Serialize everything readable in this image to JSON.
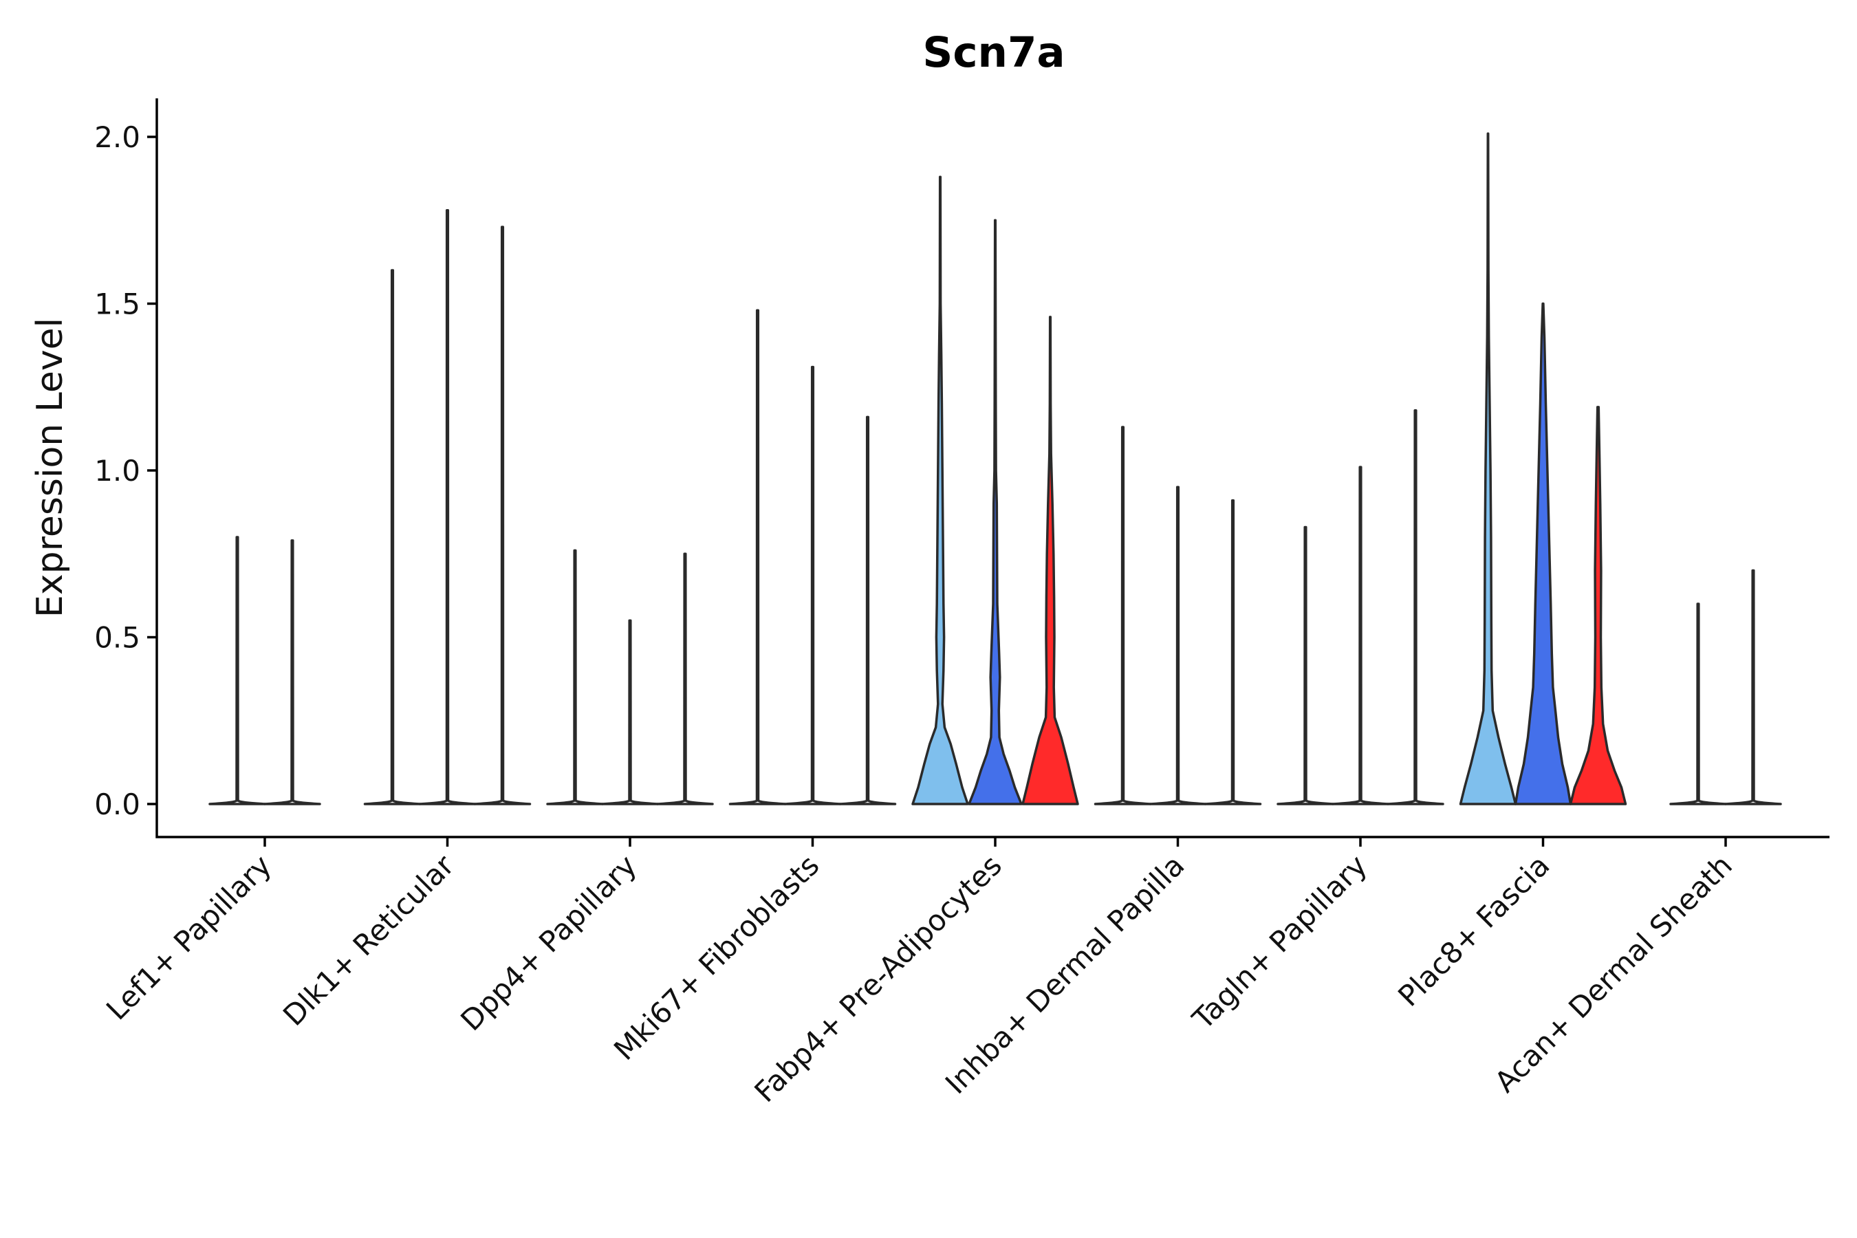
{
  "chart_data": {
    "type": "violin",
    "title": "Scn7a",
    "xlabel": "",
    "ylabel": "Expression Level",
    "ylim": [
      -0.1,
      2.12
    ],
    "yticks": [
      "0.0",
      "0.5",
      "1.0",
      "1.5",
      "2.0"
    ],
    "ytick_values": [
      0,
      0.5,
      1.0,
      1.5,
      2.0
    ],
    "grid": false,
    "legend": "none",
    "colors": {
      "light_blue": "#7fbfed",
      "blue": "#4470ea",
      "red": "#ff2a2a",
      "neutral": "#ffffff",
      "outline": "#2a2a2a"
    },
    "categories": [
      "Lef1+ Papillary",
      "Dlk1+ Reticular",
      "Dpp4+ Papillary",
      "Mki67+ Fibroblasts",
      "Fabp4+ Pre-Adipocytes",
      "Inhba+ Dermal Papilla",
      "Tagln+ Papillary",
      "Plac8+ Fascia",
      "Acan+ Dermal Sheath"
    ],
    "groups": [
      {
        "category": "Lef1+ Papillary",
        "violins": [
          {
            "max": 0.8,
            "color": "neutral",
            "shape": "spike"
          },
          {
            "max": 0.79,
            "color": "neutral",
            "shape": "spike"
          }
        ]
      },
      {
        "category": "Dlk1+ Reticular",
        "violins": [
          {
            "max": 1.6,
            "color": "neutral",
            "shape": "spike"
          },
          {
            "max": 1.78,
            "color": "neutral",
            "shape": "spike"
          },
          {
            "max": 1.73,
            "color": "neutral",
            "shape": "spike"
          }
        ]
      },
      {
        "category": "Dpp4+ Papillary",
        "violins": [
          {
            "max": 0.76,
            "color": "neutral",
            "shape": "spike"
          },
          {
            "max": 0.55,
            "color": "neutral",
            "shape": "spike"
          },
          {
            "max": 0.75,
            "color": "neutral",
            "shape": "spike"
          }
        ]
      },
      {
        "category": "Mki67+ Fibroblasts",
        "violins": [
          {
            "max": 1.48,
            "color": "neutral",
            "shape": "spike"
          },
          {
            "max": 1.31,
            "color": "neutral",
            "shape": "spike"
          },
          {
            "max": 1.16,
            "color": "neutral",
            "shape": "spike"
          }
        ]
      },
      {
        "category": "Fabp4+ Pre-Adipocytes",
        "violins": [
          {
            "max": 1.88,
            "color": "light_blue",
            "shape": "fabp4_a"
          },
          {
            "max": 1.75,
            "color": "blue",
            "shape": "fabp4_b"
          },
          {
            "max": 1.46,
            "color": "red",
            "shape": "fabp4_c"
          }
        ]
      },
      {
        "category": "Inhba+ Dermal Papilla",
        "violins": [
          {
            "max": 1.13,
            "color": "neutral",
            "shape": "spike"
          },
          {
            "max": 0.95,
            "color": "neutral",
            "shape": "spike"
          },
          {
            "max": 0.91,
            "color": "neutral",
            "shape": "spike"
          }
        ]
      },
      {
        "category": "Tagln+ Papillary",
        "violins": [
          {
            "max": 0.83,
            "color": "neutral",
            "shape": "spike"
          },
          {
            "max": 1.01,
            "color": "neutral",
            "shape": "spike"
          },
          {
            "max": 1.18,
            "color": "neutral",
            "shape": "spike"
          }
        ]
      },
      {
        "category": "Plac8+ Fascia",
        "violins": [
          {
            "max": 2.01,
            "color": "light_blue",
            "shape": "plac8_a"
          },
          {
            "max": 1.5,
            "color": "blue",
            "shape": "plac8_b"
          },
          {
            "max": 1.19,
            "color": "red",
            "shape": "plac8_c"
          }
        ]
      },
      {
        "category": "Acan+ Dermal Sheath",
        "violins": [
          {
            "max": 0.6,
            "color": "neutral",
            "shape": "spike"
          },
          {
            "max": 0.7,
            "color": "neutral",
            "shape": "spike"
          }
        ]
      }
    ]
  }
}
